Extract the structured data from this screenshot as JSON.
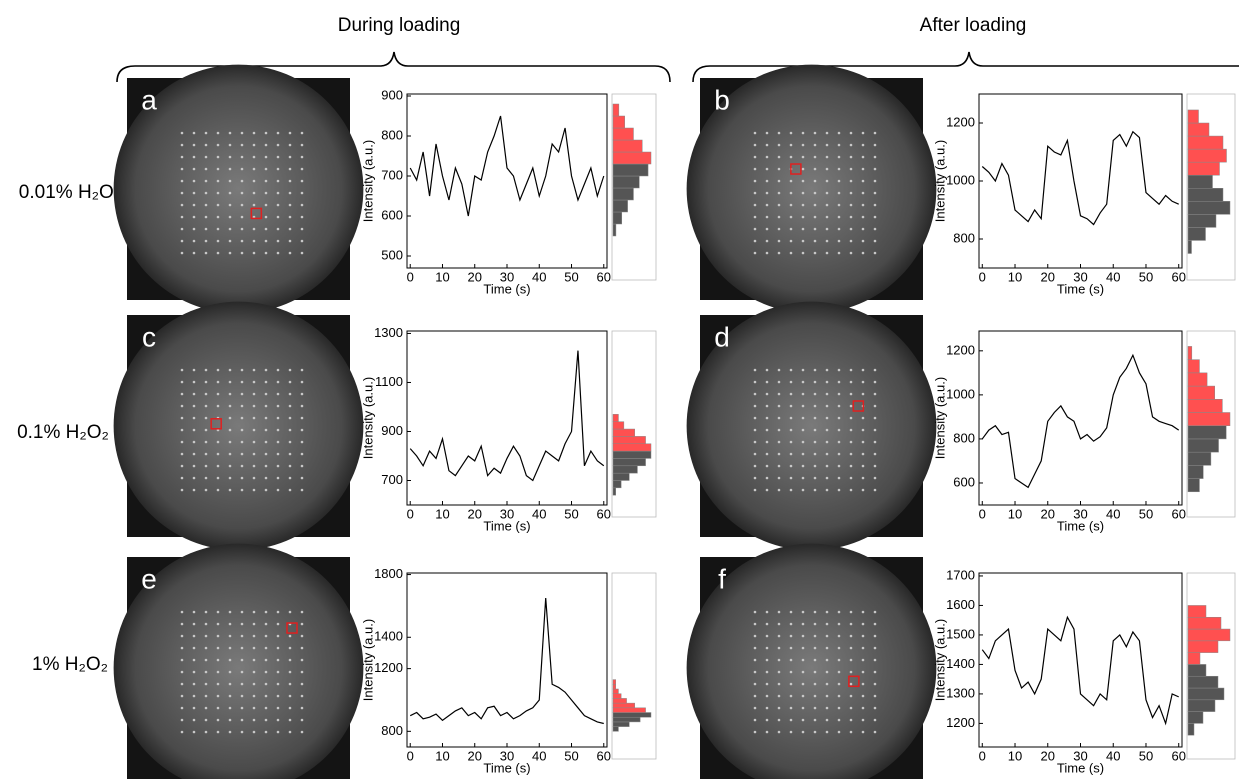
{
  "headers": [
    "During loading",
    "After loading"
  ],
  "row_labels": [
    "0.01% H₂O₂",
    "0.1% H₂O₂",
    "1% H₂O₂"
  ],
  "chart_data": [
    {
      "type": "line",
      "label": "a",
      "xlabel": "Time (s)",
      "ylabel": "Intensity (a.u.)",
      "x": [
        0,
        2,
        4,
        6,
        8,
        10,
        12,
        14,
        16,
        18,
        20,
        22,
        24,
        26,
        28,
        30,
        32,
        34,
        36,
        38,
        40,
        42,
        44,
        46,
        48,
        50,
        52,
        54,
        56,
        58,
        60
      ],
      "series": [
        {
          "color": "#000000",
          "values": [
            720,
            690,
            760,
            650,
            780,
            700,
            640,
            720,
            680,
            600,
            700,
            690,
            760,
            800,
            850,
            720,
            700,
            640,
            680,
            720,
            650,
            700,
            780,
            760,
            820,
            700,
            640,
            680,
            720,
            650,
            700
          ]
        }
      ],
      "xlim": [
        -1,
        61
      ],
      "ylim": [
        470,
        905
      ],
      "xticks": [
        0,
        10,
        20,
        30,
        40,
        50,
        60
      ],
      "yticks": [
        500,
        600,
        700,
        800,
        900
      ],
      "histogram": {
        "bins": [
          550,
          580,
          610,
          640,
          670,
          700,
          730,
          760,
          790,
          820,
          850,
          880
        ],
        "series": [
          {
            "color": "#555555",
            "counts": [
              1,
              3,
              5,
              7,
              9,
              12,
              0,
              0,
              0,
              0,
              0
            ]
          },
          {
            "color": "#ff5050",
            "counts": [
              0,
              0,
              0,
              0,
              0,
              0,
              13,
              10,
              7,
              4,
              2
            ]
          }
        ]
      }
    },
    {
      "type": "line",
      "label": "b",
      "xlabel": "Time (s)",
      "ylabel": "Intensity (a.u.)",
      "x": [
        0,
        2,
        4,
        6,
        8,
        10,
        12,
        14,
        16,
        18,
        20,
        22,
        24,
        26,
        28,
        30,
        32,
        34,
        36,
        38,
        40,
        42,
        44,
        46,
        48,
        50,
        52,
        54,
        56,
        58,
        60
      ],
      "series": [
        {
          "color": "#000000",
          "values": [
            1050,
            1030,
            1000,
            1060,
            1020,
            900,
            880,
            860,
            900,
            870,
            1120,
            1100,
            1090,
            1140,
            1000,
            880,
            870,
            850,
            890,
            920,
            1140,
            1160,
            1120,
            1170,
            1150,
            960,
            940,
            920,
            950,
            930,
            920
          ]
        }
      ],
      "xlim": [
        -1,
        61
      ],
      "ylim": [
        700,
        1300
      ],
      "xticks": [
        0,
        10,
        20,
        30,
        40,
        50,
        60
      ],
      "yticks": [
        800,
        1000,
        1200
      ],
      "histogram": {
        "bins": [
          750,
          795,
          840,
          885,
          930,
          975,
          1020,
          1065,
          1110,
          1155,
          1200,
          1245
        ],
        "series": [
          {
            "color": "#555555",
            "counts": [
              1,
              5,
              8,
              12,
              10,
              7,
              0,
              0,
              0,
              0,
              0
            ]
          },
          {
            "color": "#ff5050",
            "counts": [
              0,
              0,
              0,
              0,
              0,
              0,
              9,
              11,
              10,
              6,
              3
            ]
          }
        ]
      }
    },
    {
      "type": "line",
      "label": "c",
      "xlabel": "Time (s)",
      "ylabel": "Intensity (a.u.)",
      "x": [
        0,
        2,
        4,
        6,
        8,
        10,
        12,
        14,
        16,
        18,
        20,
        22,
        24,
        26,
        28,
        30,
        32,
        34,
        36,
        38,
        40,
        42,
        44,
        46,
        48,
        50,
        52,
        54,
        56,
        58,
        60
      ],
      "series": [
        {
          "color": "#000000",
          "values": [
            830,
            800,
            760,
            820,
            790,
            870,
            740,
            720,
            760,
            800,
            780,
            840,
            720,
            750,
            730,
            790,
            840,
            800,
            720,
            700,
            760,
            820,
            800,
            780,
            850,
            900,
            1230,
            760,
            820,
            780,
            760
          ]
        }
      ],
      "xlim": [
        -1,
        61
      ],
      "ylim": [
        600,
        1310
      ],
      "xticks": [
        0,
        10,
        20,
        30,
        40,
        50,
        60
      ],
      "yticks": [
        700,
        900,
        1100,
        1300
      ],
      "histogram": {
        "bins": [
          640,
          670,
          700,
          730,
          760,
          790,
          820,
          850,
          880,
          910,
          940,
          970
        ],
        "series": [
          {
            "color": "#555555",
            "counts": [
              1,
              3,
              6,
              9,
              12,
              14,
              0,
              0,
              0,
              0,
              0
            ]
          },
          {
            "color": "#ff5050",
            "counts": [
              0,
              0,
              0,
              0,
              0,
              0,
              14,
              12,
              8,
              4,
              2
            ]
          }
        ]
      }
    },
    {
      "type": "line",
      "label": "d",
      "xlabel": "Time (s)",
      "ylabel": "Intensity (a.u.)",
      "x": [
        0,
        2,
        4,
        6,
        8,
        10,
        12,
        14,
        16,
        18,
        20,
        22,
        24,
        26,
        28,
        30,
        32,
        34,
        36,
        38,
        40,
        42,
        44,
        46,
        48,
        50,
        52,
        54,
        56,
        58,
        60
      ],
      "series": [
        {
          "color": "#000000",
          "values": [
            800,
            840,
            860,
            820,
            830,
            620,
            600,
            580,
            640,
            700,
            880,
            920,
            950,
            900,
            880,
            800,
            820,
            790,
            810,
            850,
            1000,
            1080,
            1120,
            1180,
            1100,
            1050,
            900,
            880,
            870,
            860,
            840
          ]
        }
      ],
      "xlim": [
        -1,
        61
      ],
      "ylim": [
        500,
        1290
      ],
      "xticks": [
        0,
        10,
        20,
        30,
        40,
        50,
        60
      ],
      "yticks": [
        600,
        800,
        1000,
        1200
      ],
      "histogram": {
        "bins": [
          560,
          620,
          680,
          740,
          800,
          860,
          920,
          980,
          1040,
          1100,
          1160,
          1220
        ],
        "series": [
          {
            "color": "#555555",
            "counts": [
              3,
              4,
              6,
              8,
              10,
              0,
              0,
              0,
              0,
              0,
              0
            ]
          },
          {
            "color": "#ff5050",
            "counts": [
              0,
              0,
              0,
              0,
              0,
              11,
              9,
              7,
              5,
              3,
              1
            ]
          }
        ]
      }
    },
    {
      "type": "line",
      "label": "e",
      "xlabel": "Time (s)",
      "ylabel": "Intensity (a.u.)",
      "x": [
        0,
        2,
        4,
        6,
        8,
        10,
        12,
        14,
        16,
        18,
        20,
        22,
        24,
        26,
        28,
        30,
        32,
        34,
        36,
        38,
        40,
        42,
        44,
        46,
        48,
        50,
        52,
        54,
        56,
        58,
        60
      ],
      "series": [
        {
          "color": "#000000",
          "values": [
            900,
            920,
            880,
            890,
            910,
            870,
            900,
            930,
            950,
            900,
            920,
            880,
            950,
            960,
            900,
            920,
            880,
            900,
            930,
            950,
            1000,
            1650,
            1100,
            1080,
            1050,
            1000,
            950,
            900,
            880,
            860,
            850
          ]
        }
      ],
      "xlim": [
        -1,
        61
      ],
      "ylim": [
        700,
        1810
      ],
      "xticks": [
        0,
        10,
        20,
        30,
        40,
        50,
        60
      ],
      "yticks": [
        800,
        1200,
        1400,
        1800
      ],
      "histogram": {
        "bins": [
          800,
          830,
          860,
          890,
          920,
          950,
          980,
          1010,
          1040,
          1070,
          1100,
          1130
        ],
        "series": [
          {
            "color": "#555555",
            "counts": [
              2,
              6,
              10,
              14,
              0,
              0,
              0,
              0,
              0,
              0,
              0
            ]
          },
          {
            "color": "#ff5050",
            "counts": [
              0,
              0,
              0,
              0,
              12,
              8,
              5,
              3,
              2,
              1,
              1
            ]
          }
        ]
      }
    },
    {
      "type": "line",
      "label": "f",
      "xlabel": "Time (s)",
      "ylabel": "Intensity (a.u.)",
      "x": [
        0,
        2,
        4,
        6,
        8,
        10,
        12,
        14,
        16,
        18,
        20,
        22,
        24,
        26,
        28,
        30,
        32,
        34,
        36,
        38,
        40,
        42,
        44,
        46,
        48,
        50,
        52,
        54,
        56,
        58,
        60
      ],
      "series": [
        {
          "color": "#000000",
          "values": [
            1450,
            1420,
            1480,
            1500,
            1520,
            1380,
            1320,
            1340,
            1300,
            1350,
            1520,
            1500,
            1480,
            1560,
            1520,
            1300,
            1280,
            1260,
            1300,
            1280,
            1480,
            1500,
            1460,
            1510,
            1480,
            1280,
            1220,
            1260,
            1200,
            1300,
            1290
          ]
        }
      ],
      "xlim": [
        -1,
        61
      ],
      "ylim": [
        1120,
        1710
      ],
      "xticks": [
        0,
        10,
        20,
        30,
        40,
        50,
        60
      ],
      "yticks": [
        1200,
        1300,
        1400,
        1500,
        1600,
        1700
      ],
      "histogram": {
        "bins": [
          1160,
          1200,
          1240,
          1280,
          1320,
          1360,
          1400,
          1440,
          1480,
          1520,
          1560,
          1600
        ],
        "series": [
          {
            "color": "#555555",
            "counts": [
              2,
              5,
              9,
              12,
              10,
              6,
              0,
              0,
              0,
              0,
              0
            ]
          },
          {
            "color": "#ff5050",
            "counts": [
              0,
              0,
              0,
              0,
              0,
              0,
              4,
              10,
              14,
              11,
              6
            ]
          }
        ]
      }
    }
  ]
}
